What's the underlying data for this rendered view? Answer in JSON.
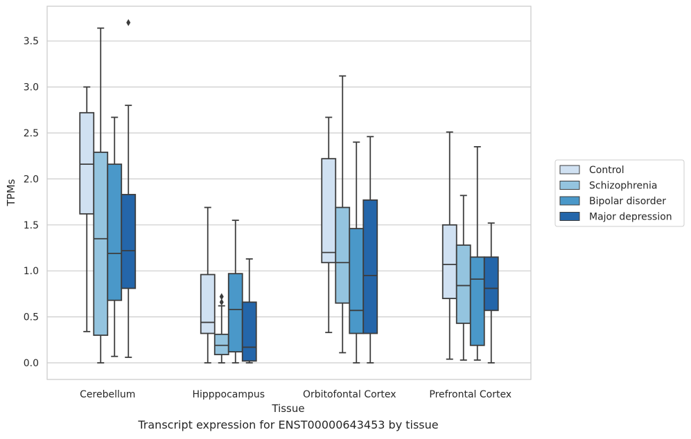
{
  "caption": "Transcript expression for ENST00000643453 by tissue",
  "chart_data": {
    "type": "box",
    "xlabel": "Tissue",
    "ylabel": "TPMs",
    "ylim": [
      -0.18,
      3.9
    ],
    "yticks": [
      0.0,
      0.5,
      1.0,
      1.5,
      2.0,
      2.5,
      3.0,
      3.5
    ],
    "ytick_labels": [
      "0.0",
      "0.5",
      "1.0",
      "1.5",
      "2.0",
      "2.5",
      "3.0",
      "3.5"
    ],
    "grid": "horizontal",
    "legend_position": "right",
    "categories": [
      "Cerebellum",
      "Hipppocampus",
      "Orbitofontal Cortex",
      "Prefrontal Cortex"
    ],
    "series": [
      {
        "name": "Control",
        "color": "#d0e1f2",
        "boxes": [
          {
            "whislo": 0.34,
            "q1": 1.62,
            "med": 2.16,
            "q3": 2.72,
            "whishi": 3.0,
            "fliers": []
          },
          {
            "whislo": 0.0,
            "q1": 0.32,
            "med": 0.44,
            "q3": 0.96,
            "whishi": 1.69,
            "fliers": []
          },
          {
            "whislo": 0.33,
            "q1": 1.09,
            "med": 1.2,
            "q3": 2.22,
            "whishi": 2.67,
            "fliers": []
          },
          {
            "whislo": 0.04,
            "q1": 0.7,
            "med": 1.07,
            "q3": 1.5,
            "whishi": 2.51,
            "fliers": []
          }
        ]
      },
      {
        "name": "Schizophrenia",
        "color": "#94c4df",
        "boxes": [
          {
            "whislo": 0.0,
            "q1": 0.3,
            "med": 1.35,
            "q3": 2.29,
            "whishi": 3.64,
            "fliers": []
          },
          {
            "whislo": 0.0,
            "q1": 0.09,
            "med": 0.19,
            "q3": 0.31,
            "whishi": 0.62,
            "fliers": [
              0.66,
              0.72
            ]
          },
          {
            "whislo": 0.11,
            "q1": 0.65,
            "med": 1.09,
            "q3": 1.69,
            "whishi": 3.12,
            "fliers": []
          },
          {
            "whislo": 0.03,
            "q1": 0.43,
            "med": 0.84,
            "q3": 1.28,
            "whishi": 1.82,
            "fliers": []
          }
        ]
      },
      {
        "name": "Bipolar disorder",
        "color": "#4a98c9",
        "boxes": [
          {
            "whislo": 0.07,
            "q1": 0.68,
            "med": 1.19,
            "q3": 2.16,
            "whishi": 2.67,
            "fliers": []
          },
          {
            "whislo": 0.0,
            "q1": 0.12,
            "med": 0.58,
            "q3": 0.97,
            "whishi": 1.55,
            "fliers": []
          },
          {
            "whislo": 0.0,
            "q1": 0.32,
            "med": 0.57,
            "q3": 1.46,
            "whishi": 2.4,
            "fliers": []
          },
          {
            "whislo": 0.03,
            "q1": 0.19,
            "med": 0.91,
            "q3": 1.15,
            "whishi": 2.35,
            "fliers": []
          }
        ]
      },
      {
        "name": "Major depression",
        "color": "#2466aa",
        "boxes": [
          {
            "whislo": 0.06,
            "q1": 0.81,
            "med": 1.22,
            "q3": 1.83,
            "whishi": 2.8,
            "fliers": [
              3.7
            ]
          },
          {
            "whislo": 0.0,
            "q1": 0.02,
            "med": 0.17,
            "q3": 0.66,
            "whishi": 1.13,
            "fliers": []
          },
          {
            "whislo": 0.0,
            "q1": 0.32,
            "med": 0.95,
            "q3": 1.77,
            "whishi": 2.46,
            "fliers": []
          },
          {
            "whislo": 0.0,
            "q1": 0.57,
            "med": 0.81,
            "q3": 1.15,
            "whishi": 1.52,
            "fliers": []
          }
        ]
      }
    ]
  }
}
